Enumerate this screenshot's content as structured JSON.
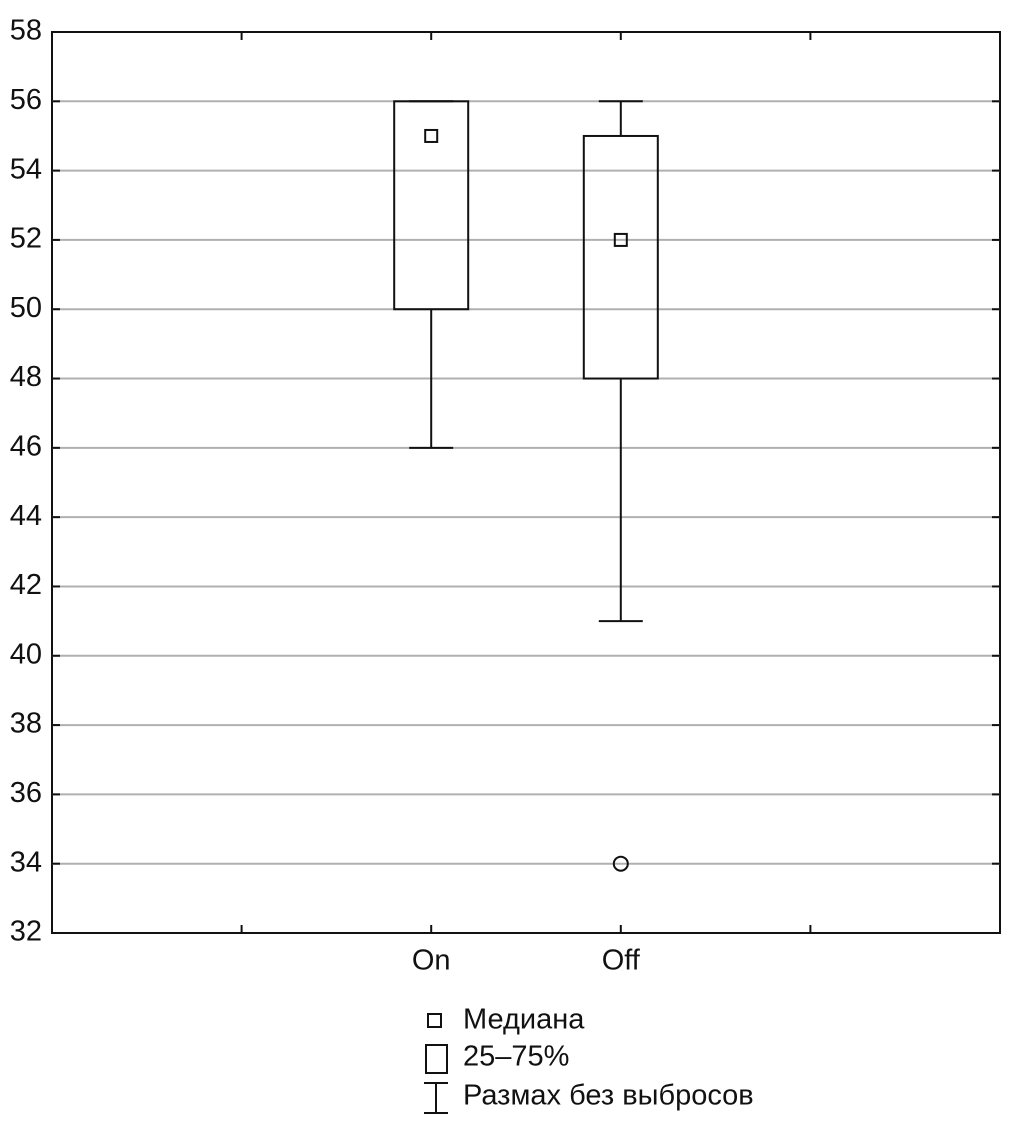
{
  "chart_data": {
    "type": "box",
    "categories": [
      null,
      "On",
      "Off",
      null
    ],
    "min": [
      null,
      46,
      41,
      null
    ],
    "q1": [
      null,
      50,
      48,
      null
    ],
    "median": [
      null,
      55,
      52,
      null
    ],
    "q3": [
      null,
      56,
      55,
      null
    ],
    "max": [
      null,
      56,
      56,
      null
    ],
    "outliers": [
      [],
      [],
      [
        34
      ],
      []
    ],
    "ylim": [
      32,
      58
    ],
    "yticks": [
      32,
      34,
      36,
      38,
      40,
      42,
      44,
      46,
      48,
      50,
      52,
      54,
      56,
      58
    ],
    "grid": true,
    "color": "#111111",
    "legend": [
      "Медиана",
      "25–75%",
      "Размах без выбросов"
    ]
  }
}
